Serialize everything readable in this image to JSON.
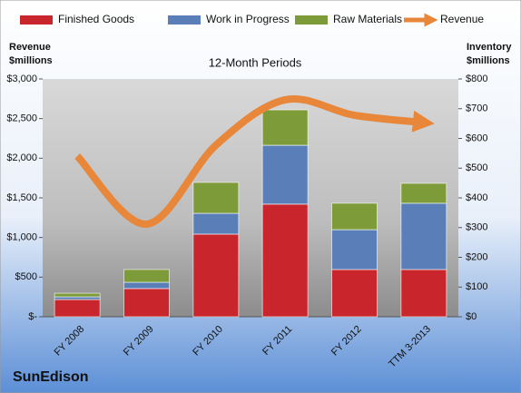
{
  "chart_data": {
    "type": "stacked_bar_line",
    "title": "12-Month Periods",
    "company": "SunEdison",
    "ylabel": [
      "Revenue",
      "$millions"
    ],
    "y2label": [
      "Inventory",
      "$millions"
    ],
    "categories": [
      "FY 2008",
      "FY 2009",
      "FY 2010",
      "FY 2011",
      "FY 2012",
      "TTM 3-2013"
    ],
    "series": [
      {
        "name": "Finished Goods",
        "color": "#c8262c",
        "axis": "y2",
        "values": [
          58,
          95,
          278,
          379,
          159,
          159
        ]
      },
      {
        "name": "Work in Progress",
        "color": "#5a7fb8",
        "axis": "y2",
        "values": [
          9,
          21,
          70,
          198,
          134,
          223
        ]
      },
      {
        "name": "Raw Materials",
        "color": "#7e9b3a",
        "axis": "y2",
        "values": [
          12,
          43,
          104,
          119,
          89,
          67
        ]
      },
      {
        "name": "Revenue",
        "color": "#e8873a",
        "axis": "y",
        "line": true,
        "values": [
          2027,
          1168,
          2164,
          2737,
          2542,
          2450
        ]
      }
    ],
    "ylim": [
      0,
      3000
    ],
    "yticks": [
      {
        "value": 0,
        "label": "$-"
      },
      {
        "value": 500,
        "label": "$500"
      },
      {
        "value": 1000,
        "label": "$1,000"
      },
      {
        "value": 1500,
        "label": "$1,500"
      },
      {
        "value": 2000,
        "label": "$2,000"
      },
      {
        "value": 2500,
        "label": "$2,500"
      },
      {
        "value": 3000,
        "label": "$3,000"
      }
    ],
    "y2lim": [
      0,
      800
    ],
    "y2ticks": [
      {
        "value": 0,
        "label": "$0"
      },
      {
        "value": 100,
        "label": "$100"
      },
      {
        "value": 200,
        "label": "$200"
      },
      {
        "value": 300,
        "label": "$300"
      },
      {
        "value": 400,
        "label": "$400"
      },
      {
        "value": 500,
        "label": "$500"
      },
      {
        "value": 600,
        "label": "$600"
      },
      {
        "value": 700,
        "label": "$700"
      },
      {
        "value": 800,
        "label": "$800"
      }
    ]
  }
}
